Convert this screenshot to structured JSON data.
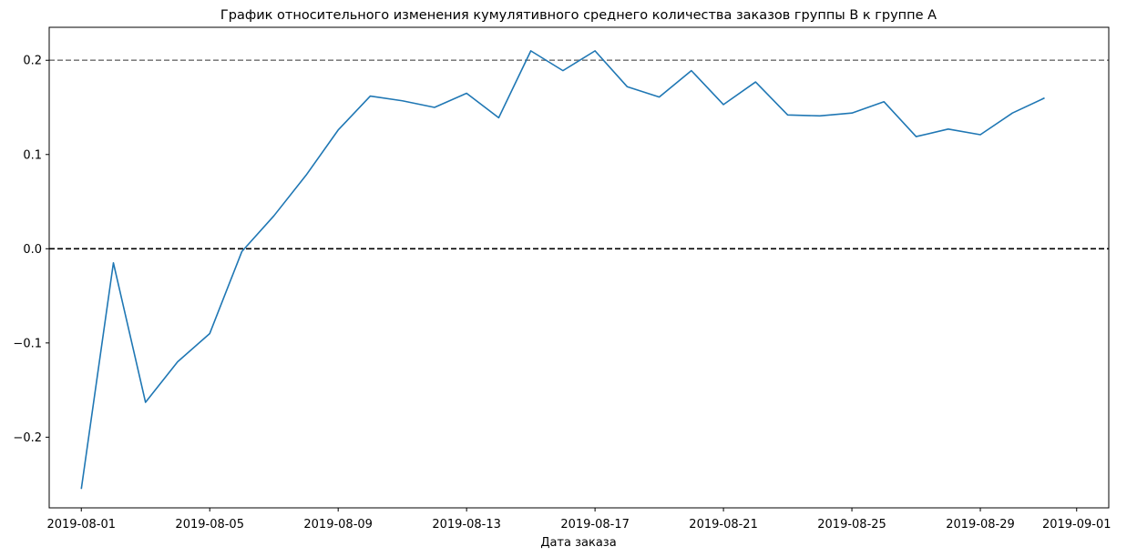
{
  "chart_data": {
    "type": "line",
    "title": "График относительного изменения кумулятивного среднего количества заказов группы B к группе A",
    "xlabel": "Дата заказа",
    "ylabel": "",
    "xlim": [
      "2019-07-31",
      "2019-09-02"
    ],
    "ylim": [
      -0.275,
      0.235
    ],
    "x_ticks": [
      "2019-08-01",
      "2019-08-05",
      "2019-08-09",
      "2019-08-13",
      "2019-08-17",
      "2019-08-21",
      "2019-08-25",
      "2019-08-29",
      "2019-09-01"
    ],
    "y_ticks": [
      -0.2,
      -0.1,
      0.0,
      0.1,
      0.2
    ],
    "y_tick_labels": [
      "−0.2",
      "−0.1",
      "0.0",
      "0.1",
      "0.2"
    ],
    "grid": false,
    "legend": "none",
    "series_color": "#1f77b4",
    "reference_lines": [
      {
        "y": 0.0,
        "color": "#000000",
        "style": "dashed"
      },
      {
        "y": 0.2,
        "color": "#808080",
        "style": "dashed"
      }
    ],
    "series": [
      {
        "x": [
          "2019-08-01",
          "2019-08-02",
          "2019-08-03",
          "2019-08-04",
          "2019-08-05",
          "2019-08-06",
          "2019-08-07",
          "2019-08-08",
          "2019-08-09",
          "2019-08-10",
          "2019-08-11",
          "2019-08-12",
          "2019-08-13",
          "2019-08-14",
          "2019-08-15",
          "2019-08-16",
          "2019-08-17",
          "2019-08-18",
          "2019-08-19",
          "2019-08-20",
          "2019-08-21",
          "2019-08-22",
          "2019-08-23",
          "2019-08-24",
          "2019-08-25",
          "2019-08-26",
          "2019-08-27",
          "2019-08-28",
          "2019-08-29",
          "2019-08-30",
          "2019-08-31"
        ],
        "values": [
          -0.255,
          -0.015,
          -0.163,
          -0.12,
          -0.09,
          -0.003,
          0.035,
          0.078,
          0.126,
          0.162,
          0.157,
          0.15,
          0.165,
          0.139,
          0.21,
          0.189,
          0.21,
          0.172,
          0.161,
          0.189,
          0.153,
          0.177,
          0.142,
          0.141,
          0.144,
          0.156,
          0.119,
          0.127,
          0.121,
          0.144,
          0.16
        ]
      }
    ]
  }
}
